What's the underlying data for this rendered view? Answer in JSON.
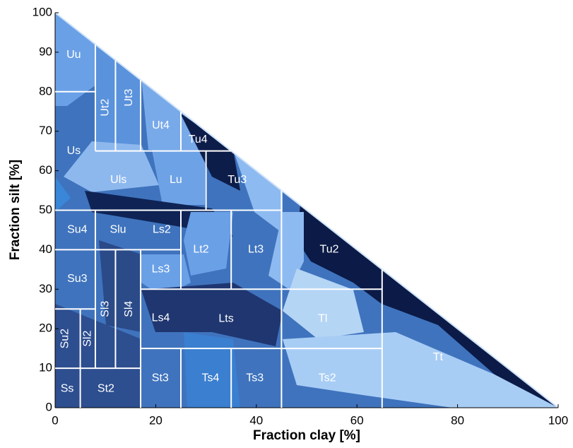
{
  "chart_data": {
    "type": "soil-triangle",
    "xlabel": "Fraction clay [%]",
    "ylabel": "Fraction silt [%]",
    "xlim": [
      0,
      100
    ],
    "ylim": [
      0,
      100
    ],
    "xticks": [
      0,
      20,
      40,
      60,
      80,
      100
    ],
    "yticks": [
      0,
      10,
      20,
      30,
      40,
      50,
      60,
      70,
      80,
      90,
      100
    ],
    "boundary_color": "#ffffff",
    "boundaries": [
      [
        0,
        80,
        8,
        80
      ],
      [
        8,
        65,
        8,
        92
      ],
      [
        12,
        65,
        12,
        88
      ],
      [
        17,
        65,
        17,
        83
      ],
      [
        8,
        65,
        35,
        65
      ],
      [
        25,
        65,
        25,
        75
      ],
      [
        30,
        50,
        30,
        65
      ],
      [
        0,
        50,
        45,
        50
      ],
      [
        45,
        0,
        45,
        55
      ],
      [
        8,
        40,
        8,
        50
      ],
      [
        0,
        40,
        25,
        40
      ],
      [
        25,
        30,
        25,
        50
      ],
      [
        35,
        30,
        35,
        50
      ],
      [
        17,
        30,
        65,
        30
      ],
      [
        65,
        0,
        65,
        35
      ],
      [
        8,
        10,
        8,
        40
      ],
      [
        12,
        10,
        12,
        40
      ],
      [
        17,
        0,
        17,
        40
      ],
      [
        0,
        25,
        8,
        25
      ],
      [
        5,
        0,
        5,
        25
      ],
      [
        0,
        10,
        17,
        10
      ],
      [
        17,
        15,
        65,
        15
      ],
      [
        25,
        0,
        25,
        15
      ],
      [
        35,
        0,
        35,
        15
      ]
    ],
    "regions": [
      {
        "label": "Uu",
        "x": 3.7,
        "y": 89.3
      },
      {
        "label": "Ut2",
        "x": 10,
        "y": 76,
        "vertical": true
      },
      {
        "label": "Ut3",
        "x": 14.7,
        "y": 78.5,
        "vertical": true
      },
      {
        "label": "Ut4",
        "x": 21,
        "y": 71.4
      },
      {
        "label": "Tu4",
        "x": 28.4,
        "y": 67.8
      },
      {
        "label": "Us",
        "x": 3.7,
        "y": 65
      },
      {
        "label": "Uls",
        "x": 12.6,
        "y": 57.6
      },
      {
        "label": "Lu",
        "x": 24,
        "y": 57.6
      },
      {
        "label": "Tu3",
        "x": 36.2,
        "y": 57.6
      },
      {
        "label": "Su4",
        "x": 4.4,
        "y": 45
      },
      {
        "label": "Slu",
        "x": 12.5,
        "y": 45
      },
      {
        "label": "Ls2",
        "x": 21.2,
        "y": 45
      },
      {
        "label": "Lt2",
        "x": 29,
        "y": 40
      },
      {
        "label": "Lt3",
        "x": 39.9,
        "y": 40
      },
      {
        "label": "Tu2",
        "x": 54.5,
        "y": 40
      },
      {
        "label": "Ls3",
        "x": 21,
        "y": 35
      },
      {
        "label": "Su3",
        "x": 4.4,
        "y": 32.6
      },
      {
        "label": "Sl3",
        "x": 10,
        "y": 25,
        "vertical": true
      },
      {
        "label": "Sl4",
        "x": 14.7,
        "y": 25,
        "vertical": true
      },
      {
        "label": "Ls4",
        "x": 21,
        "y": 22.7
      },
      {
        "label": "Lts",
        "x": 34,
        "y": 22.5
      },
      {
        "label": "Tl",
        "x": 53.2,
        "y": 22.5
      },
      {
        "label": "Su2",
        "x": 2,
        "y": 17.5,
        "vertical": true
      },
      {
        "label": "Sl2",
        "x": 6.5,
        "y": 17.5,
        "vertical": true
      },
      {
        "label": "Tt",
        "x": 76.1,
        "y": 12.7
      },
      {
        "label": "Ss",
        "x": 2.4,
        "y": 4.8
      },
      {
        "label": "St2",
        "x": 10.1,
        "y": 4.8
      },
      {
        "label": "St3",
        "x": 20.9,
        "y": 7.5
      },
      {
        "label": "Ts4",
        "x": 30.9,
        "y": 7.5
      },
      {
        "label": "Ts3",
        "x": 39.7,
        "y": 7.5
      },
      {
        "label": "Ts2",
        "x": 54.1,
        "y": 7.5
      }
    ]
  }
}
